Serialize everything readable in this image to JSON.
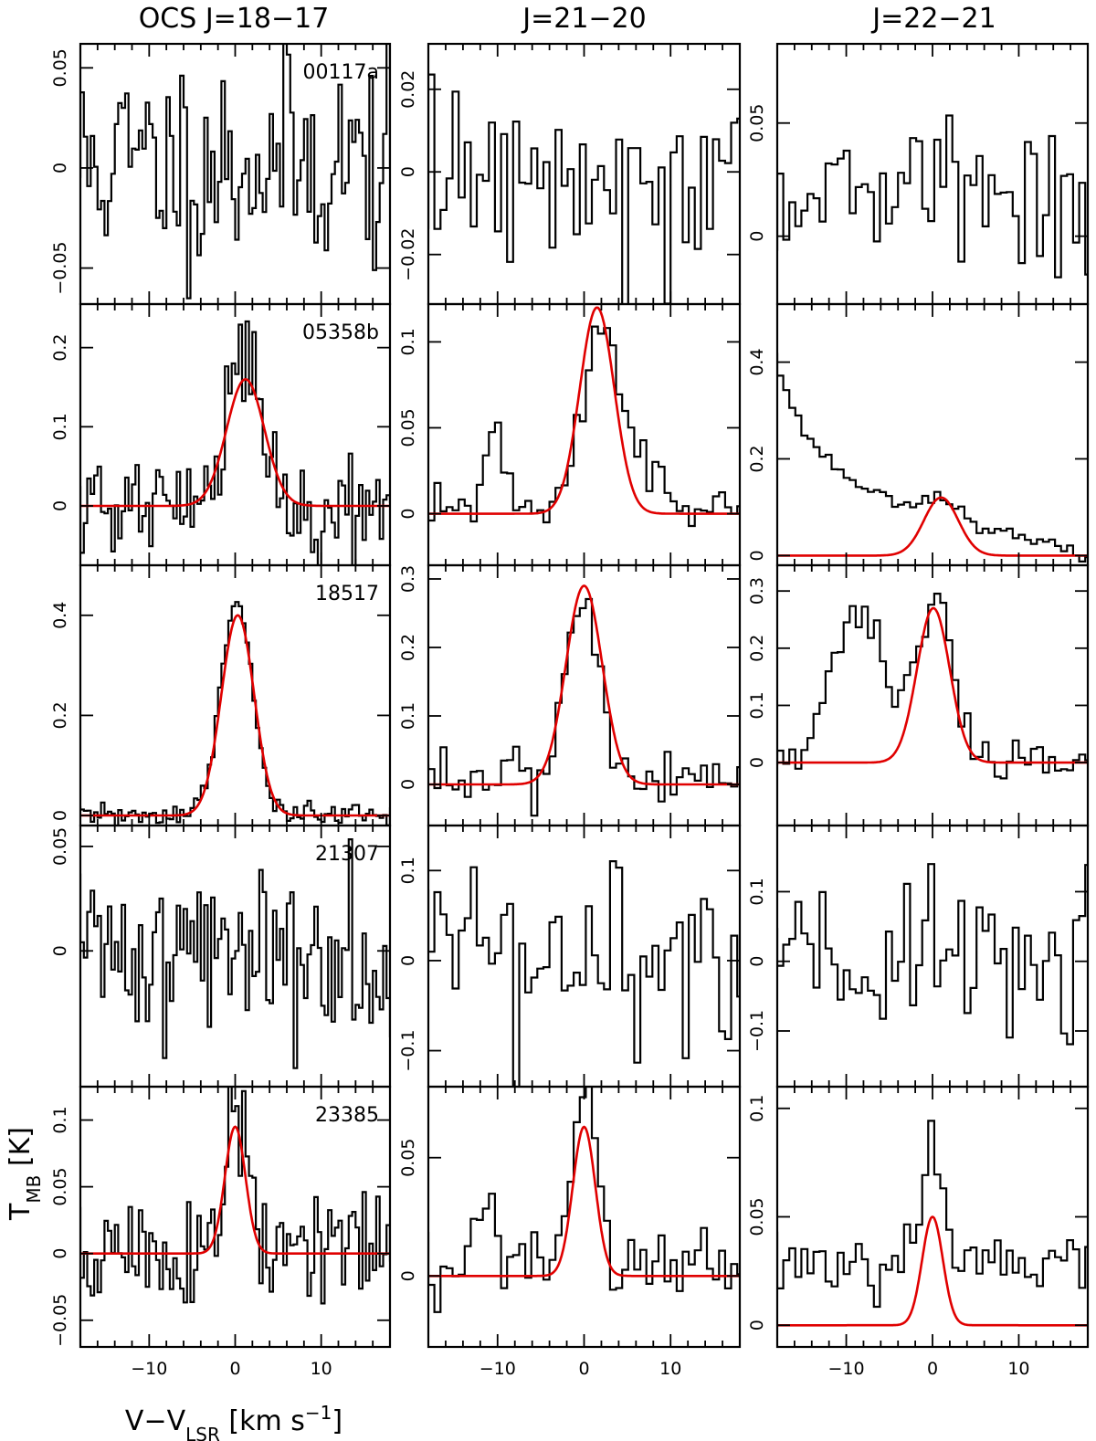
{
  "titles": {
    "col0": "OCS  J=18−17",
    "col1": "J=21−20",
    "col2": "J=22−21"
  },
  "x_axis_label": "V−V",
  "x_axis_label_sub": "LSR",
  "x_axis_label_unit": " [km  s",
  "x_axis_label_sup": "−1",
  "x_axis_label_close": "]",
  "y_axis_label": "T",
  "y_axis_label_sub": "MB",
  "y_axis_label_unit": " [K]",
  "colors": {
    "spectrum": "#000000",
    "fit": "#e00000"
  },
  "chart_data": [
    {
      "type": "line",
      "row": 0,
      "col": 0,
      "source": "00117a",
      "xlim": [
        -18,
        18
      ],
      "ylim": [
        -0.068,
        0.062
      ],
      "yticks": [
        -0.05,
        0,
        0.05
      ],
      "ytick_labels": [
        "−0.05",
        "0",
        "0.05"
      ],
      "xticks": [
        -10,
        0,
        10
      ],
      "xtick_labels": [
        "−10",
        "0",
        "10"
      ],
      "series": [
        {
          "style": "histogram",
          "noise": 0.027,
          "seed": 11,
          "step": 0.4,
          "baseline": 0.003
        }
      ]
    },
    {
      "type": "line",
      "row": 0,
      "col": 1,
      "xlim": [
        -18,
        18
      ],
      "ylim": [
        -0.032,
        0.031
      ],
      "yticks": [
        -0.02,
        0,
        0.02
      ],
      "ytick_labels": [
        "−0.02",
        "0",
        "0.02"
      ],
      "xticks": [
        -10,
        0,
        10
      ],
      "xtick_labels": [
        "−10",
        "0",
        "10"
      ],
      "series": [
        {
          "style": "histogram",
          "noise": 0.012,
          "seed": 12,
          "step": 0.7,
          "baseline": 0.0
        }
      ]
    },
    {
      "type": "line",
      "row": 0,
      "col": 2,
      "xlim": [
        -18,
        18
      ],
      "ylim": [
        -0.03,
        0.085
      ],
      "yticks": [
        0,
        0.05
      ],
      "ytick_labels": [
        "0",
        "0.05"
      ],
      "xticks": [
        -10,
        0,
        10
      ],
      "xtick_labels": [
        "−10",
        "0",
        "10"
      ],
      "series": [
        {
          "style": "histogram",
          "noise": 0.016,
          "seed": 13,
          "step": 0.7,
          "baseline": 0.02
        }
      ]
    },
    {
      "type": "line",
      "row": 1,
      "col": 0,
      "source": "05358b",
      "xlim": [
        -18,
        18
      ],
      "ylim": [
        -0.075,
        0.255
      ],
      "yticks": [
        0,
        0.1,
        0.2
      ],
      "ytick_labels": [
        "0",
        "0.1",
        "0.2"
      ],
      "xticks": [
        -10,
        0,
        10
      ],
      "xtick_labels": [
        "−10",
        "0",
        "10"
      ],
      "series": [
        {
          "style": "histogram",
          "noise": 0.035,
          "seed": 21,
          "step": 0.4,
          "baseline": 0.0,
          "gaussians": [
            [
              0.19,
              1.0,
              2.0
            ]
          ]
        },
        {
          "style": "fit",
          "amp": 0.16,
          "center": 1.2,
          "sigma": 2.2
        }
      ]
    },
    {
      "type": "line",
      "row": 1,
      "col": 1,
      "xlim": [
        -18,
        18
      ],
      "ylim": [
        -0.03,
        0.122
      ],
      "yticks": [
        0,
        0.05,
        0.1
      ],
      "ytick_labels": [
        "0",
        "0.05",
        "0.1"
      ],
      "xticks": [
        -10,
        0,
        10
      ],
      "xtick_labels": [
        "−10",
        "0",
        "10"
      ],
      "series": [
        {
          "style": "histogram",
          "noise": 0.008,
          "seed": 22,
          "step": 0.7,
          "baseline": 0.0,
          "gaussians": [
            [
              0.105,
              1.8,
              2.1
            ],
            [
              0.045,
              -10.0,
              1.4
            ],
            [
              0.02,
              7.0,
              2.5
            ]
          ]
        },
        {
          "style": "fit",
          "amp": 0.12,
          "center": 1.5,
          "sigma": 2.0
        }
      ]
    },
    {
      "type": "line",
      "row": 1,
      "col": 2,
      "xlim": [
        -18,
        18
      ],
      "ylim": [
        -0.02,
        0.52
      ],
      "yticks": [
        0,
        0.2,
        0.4
      ],
      "ytick_labels": [
        "0",
        "0.2",
        "0.4"
      ],
      "xticks": [
        -10,
        0,
        10
      ],
      "xtick_labels": [
        "−10",
        "0",
        "10"
      ],
      "series": [
        {
          "style": "histogram",
          "noise": 0.006,
          "seed": 23,
          "step": 0.7,
          "baseline": 0.0,
          "decay": [
            0.26,
            4.0,
            -18.0
          ],
          "linear": [
            0.14,
            -12.0,
            -0.01
          ],
          "gaussians": [
            [
              0.04,
              1.0,
              2.0
            ]
          ]
        },
        {
          "style": "fit",
          "amp": 0.12,
          "center": 1.0,
          "sigma": 2.0
        }
      ]
    },
    {
      "type": "line",
      "row": 2,
      "col": 0,
      "source": "18517",
      "xlim": [
        -18,
        18
      ],
      "ylim": [
        -0.02,
        0.5
      ],
      "yticks": [
        0,
        0.2,
        0.4
      ],
      "ytick_labels": [
        "0",
        "0.2",
        "0.4"
      ],
      "xticks": [
        -10,
        0,
        10
      ],
      "xtick_labels": [
        "−10",
        "0",
        "10"
      ],
      "series": [
        {
          "style": "histogram",
          "noise": 0.012,
          "seed": 31,
          "step": 0.4,
          "baseline": 0.0,
          "gaussians": [
            [
              0.43,
              0.2,
              1.85
            ]
          ]
        },
        {
          "style": "fit",
          "amp": 0.4,
          "center": 0.3,
          "sigma": 1.9
        }
      ]
    },
    {
      "type": "line",
      "row": 2,
      "col": 1,
      "xlim": [
        -18,
        18
      ],
      "ylim": [
        -0.06,
        0.32
      ],
      "yticks": [
        0,
        0.1,
        0.2,
        0.3
      ],
      "ytick_labels": [
        "0",
        "0.1",
        "0.2",
        "0.3"
      ],
      "xticks": [
        -10,
        0,
        10
      ],
      "xtick_labels": [
        "−10",
        "0",
        "10"
      ],
      "series": [
        {
          "style": "histogram",
          "noise": 0.022,
          "seed": 32,
          "step": 0.7,
          "baseline": 0.012,
          "gaussians": [
            [
              0.27,
              -0.1,
              1.9
            ]
          ]
        },
        {
          "style": "fit",
          "amp": 0.29,
          "center": 0.0,
          "sigma": 2.1
        }
      ]
    },
    {
      "type": "line",
      "row": 2,
      "col": 2,
      "xlim": [
        -18,
        18
      ],
      "ylim": [
        -0.11,
        0.345
      ],
      "yticks": [
        0,
        0.1,
        0.2,
        0.3
      ],
      "ytick_labels": [
        "0",
        "0.1",
        "0.2",
        "0.3"
      ],
      "xticks": [
        -10,
        0,
        10
      ],
      "xtick_labels": [
        "−10",
        "0",
        "10"
      ],
      "series": [
        {
          "style": "histogram",
          "noise": 0.018,
          "seed": 33,
          "step": 0.7,
          "baseline": 0.0,
          "gaussians": [
            [
              0.28,
              0.4,
              2.0
            ],
            [
              0.27,
              -8.5,
              3.0
            ]
          ]
        },
        {
          "style": "fit",
          "amp": 0.27,
          "center": 0.1,
          "sigma": 1.9
        }
      ]
    },
    {
      "type": "line",
      "row": 3,
      "col": 0,
      "source": "21307",
      "xlim": [
        -18,
        18
      ],
      "ylim": [
        -0.065,
        0.06
      ],
      "yticks": [
        0,
        0.05
      ],
      "ytick_labels": [
        "0",
        "0.05"
      ],
      "xticks": [
        -10,
        0,
        10
      ],
      "xtick_labels": [
        "−10",
        "0",
        "10"
      ],
      "series": [
        {
          "style": "histogram",
          "noise": 0.022,
          "seed": 41,
          "step": 0.4,
          "baseline": 0.0
        }
      ]
    },
    {
      "type": "line",
      "row": 3,
      "col": 1,
      "xlim": [
        -18,
        18
      ],
      "ylim": [
        -0.14,
        0.15
      ],
      "yticks": [
        -0.1,
        0,
        0.1
      ],
      "ytick_labels": [
        "−0.1",
        "0",
        "0.1"
      ],
      "xticks": [
        -10,
        0,
        10
      ],
      "xtick_labels": [
        "−10",
        "0",
        "10"
      ],
      "series": [
        {
          "style": "histogram",
          "noise": 0.055,
          "seed": 42,
          "step": 0.7,
          "baseline": 0.0
        }
      ]
    },
    {
      "type": "line",
      "row": 3,
      "col": 2,
      "xlim": [
        -18,
        18
      ],
      "ylim": [
        -0.18,
        0.195
      ],
      "yticks": [
        -0.1,
        0,
        0.1
      ],
      "ytick_labels": [
        "−0.1",
        "0",
        "0.1"
      ],
      "xticks": [
        -10,
        0,
        10
      ],
      "xtick_labels": [
        "−10",
        "0",
        "10"
      ],
      "series": [
        {
          "style": "histogram",
          "noise": 0.065,
          "seed": 43,
          "step": 0.7,
          "baseline": 0.0
        }
      ]
    },
    {
      "type": "line",
      "row": 4,
      "col": 0,
      "source": "23385",
      "xlim": [
        -18,
        18
      ],
      "ylim": [
        -0.07,
        0.125
      ],
      "yticks": [
        -0.05,
        0,
        0.05,
        0.1
      ],
      "ytick_labels": [
        "−0.05",
        "0",
        "0.05",
        "0.1"
      ],
      "xticks": [
        -10,
        0,
        10
      ],
      "xtick_labels": [
        "−10",
        "0",
        "10"
      ],
      "series": [
        {
          "style": "histogram",
          "noise": 0.025,
          "seed": 51,
          "step": 0.4,
          "baseline": 0.0,
          "gaussians": [
            [
              0.095,
              0.2,
              1.3
            ]
          ]
        },
        {
          "style": "fit",
          "amp": 0.095,
          "center": 0.0,
          "sigma": 1.2
        }
      ]
    },
    {
      "type": "line",
      "row": 4,
      "col": 1,
      "xlim": [
        -18,
        18
      ],
      "ylim": [
        -0.03,
        0.08
      ],
      "yticks": [
        0,
        0.05
      ],
      "ytick_labels": [
        "0",
        "0.05"
      ],
      "xticks": [
        -10,
        0,
        10
      ],
      "xtick_labels": [
        "−10",
        "0",
        "10"
      ],
      "series": [
        {
          "style": "histogram",
          "noise": 0.008,
          "seed": 52,
          "step": 0.7,
          "baseline": 0.005,
          "gaussians": [
            [
              0.065,
              0.2,
              1.4
            ],
            [
              0.02,
              -11.5,
              1.4
            ]
          ]
        },
        {
          "style": "fit",
          "amp": 0.063,
          "center": 0.0,
          "sigma": 1.3
        }
      ]
    },
    {
      "type": "line",
      "row": 4,
      "col": 2,
      "xlim": [
        -18,
        18
      ],
      "ylim": [
        -0.01,
        0.11
      ],
      "yticks": [
        0,
        0.05,
        0.1
      ],
      "ytick_labels": [
        "0",
        "0.05",
        "0.1"
      ],
      "xticks": [
        -10,
        0,
        10
      ],
      "xtick_labels": [
        "−10",
        "0",
        "10"
      ],
      "series": [
        {
          "style": "histogram",
          "noise": 0.009,
          "seed": 53,
          "step": 0.7,
          "baseline": 0.03,
          "gaussians": [
            [
              0.06,
              0.2,
              1.2
            ]
          ]
        },
        {
          "style": "fit",
          "amp": 0.05,
          "center": 0.0,
          "sigma": 1.2
        }
      ]
    }
  ]
}
